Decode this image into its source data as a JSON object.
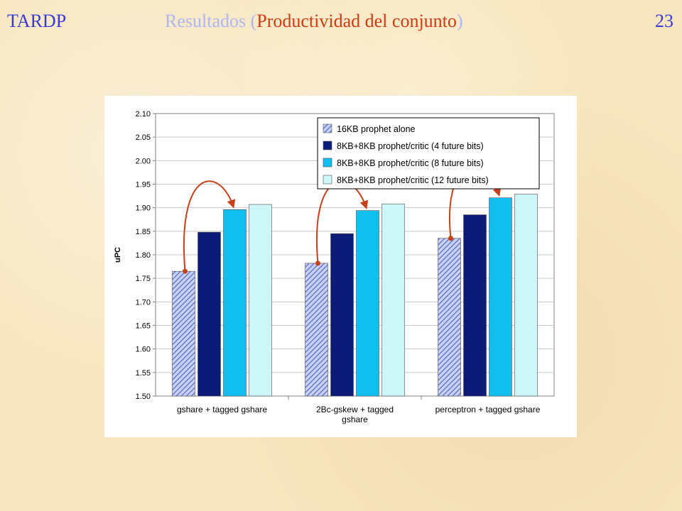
{
  "header": {
    "left": "TARDP",
    "center_prefix": "Resultados (",
    "center_highlight": "Productividad del conjunto",
    "center_suffix": ")",
    "page_number": "23"
  },
  "colors": {
    "header_text": "#3a3ad6",
    "header_faded": "#b0b6f0",
    "highlight": "#d43a12",
    "arrow": "#c8401a",
    "series": [
      "#5b6fc8",
      "#0c1a78",
      "#11bfef",
      "#ccf6f8"
    ]
  },
  "chart_data": {
    "type": "bar",
    "ylabel": "uPC",
    "xlabel": "",
    "title": "",
    "ylim": [
      1.5,
      2.1
    ],
    "yticks": [
      "1.50",
      "1.55",
      "1.60",
      "1.65",
      "1.70",
      "1.75",
      "1.80",
      "1.85",
      "1.90",
      "1.95",
      "2.00",
      "2.05",
      "2.10"
    ],
    "grid": true,
    "legend_position": "top-right",
    "categories": [
      [
        "gshare + tagged gshare"
      ],
      [
        "2Bc-gskew + tagged",
        "gshare"
      ],
      [
        "perceptron + tagged gshare"
      ]
    ],
    "series": [
      {
        "name": "16KB prophet alone",
        "values": [
          1.765,
          1.782,
          1.835
        ],
        "pattern": "hatched"
      },
      {
        "name": "8KB+8KB prophet/critic (4 future bits)",
        "values": [
          1.848,
          1.845,
          1.885
        ]
      },
      {
        "name": "8KB+8KB prophet/critic (8 future bits)",
        "values": [
          1.896,
          1.894,
          1.921
        ]
      },
      {
        "name": "8KB+8KB prophet/critic (12 future bits)",
        "values": [
          1.907,
          1.908,
          1.929
        ]
      }
    ],
    "annotations": "curved arrows from the 16KB prophet alone bar to the 8 future bits bar in each group"
  }
}
